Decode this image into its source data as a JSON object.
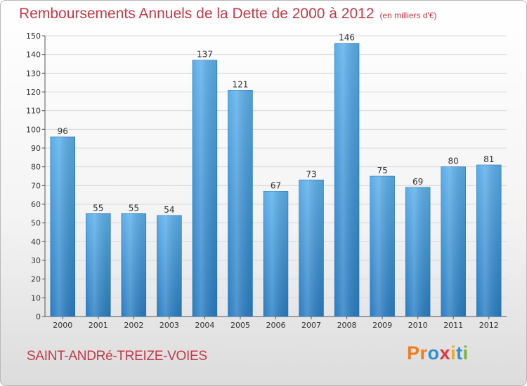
{
  "title": "Remboursements Annuels de la Dette de 2000 à 2012",
  "subtitle": "(en milliers d'€)",
  "commune": "SAINT-ANDRé-TREIZE-VOIES",
  "logo": [
    "Pr",
    "o",
    "x",
    "i",
    "t",
    "i"
  ],
  "colors": {
    "bar_top": "#5aaee9",
    "bar_bottom": "#2a7dc2",
    "title": "#c23b4b",
    "grid": "#d9d9d9"
  },
  "chart_data": {
    "type": "bar",
    "categories": [
      "2000",
      "2001",
      "2002",
      "2003",
      "2004",
      "2005",
      "2006",
      "2007",
      "2008",
      "2009",
      "2010",
      "2011",
      "2012"
    ],
    "values": [
      96,
      55,
      55,
      54,
      137,
      121,
      67,
      73,
      146,
      75,
      69,
      80,
      81
    ],
    "title": "Remboursements Annuels de la Dette de 2000 à 2012",
    "subtitle": "(en milliers d'€)",
    "xlabel": "",
    "ylabel": "",
    "ylim": [
      0,
      150
    ],
    "yticks": [
      0,
      10,
      20,
      30,
      40,
      50,
      60,
      70,
      80,
      90,
      100,
      110,
      120,
      130,
      140,
      150
    ],
    "grid": true,
    "legend": "none"
  }
}
